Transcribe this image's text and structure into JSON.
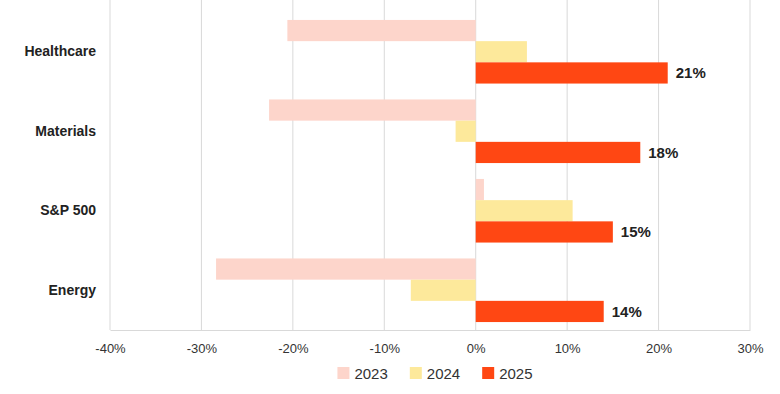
{
  "chart_data": {
    "type": "bar",
    "orientation": "horizontal",
    "grid": true,
    "data_labels": true,
    "legend": "bottom",
    "categories": [
      "Healthcare",
      "Materials",
      "S&P 500",
      "Energy"
    ],
    "series": [
      {
        "name": "2023",
        "color": "#fdd5cb",
        "values": [
          -20.6,
          -22.6,
          0.9,
          -28.4
        ]
      },
      {
        "name": "2024",
        "color": "#fde99b",
        "values": [
          5.6,
          -2.2,
          10.6,
          -7.1
        ]
      },
      {
        "name": "2025",
        "color": "#ff4713",
        "values": [
          21,
          18,
          15,
          14
        ],
        "value_labels": [
          "21%",
          "18%",
          "15%",
          "14%"
        ]
      }
    ],
    "xlim": [
      -40,
      30
    ],
    "xticks": [
      {
        "value": -40,
        "label": "-40%"
      },
      {
        "value": -30,
        "label": "-30%"
      },
      {
        "value": -20,
        "label": "-20%"
      },
      {
        "value": -10,
        "label": "-10%"
      },
      {
        "value": 0,
        "label": "0%"
      },
      {
        "value": 10,
        "label": "10%"
      },
      {
        "value": 20,
        "label": "20%"
      },
      {
        "value": 30,
        "label": "30%"
      }
    ]
  }
}
